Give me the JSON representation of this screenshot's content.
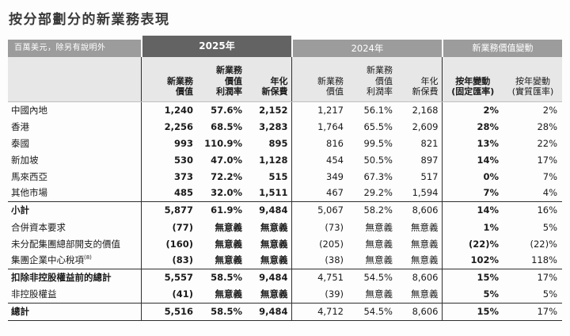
{
  "page": {
    "title": "按分部劃分的新業務表現",
    "unit_note": "百萬美元，除另有說明外"
  },
  "colors": {
    "band_dark": "#636363",
    "band_mid": "#9c9c9c",
    "subheader_bg": "#e7e7e7",
    "rule_line": "#2f2f2f",
    "text": "#1b1b1b"
  },
  "table": {
    "groups": [
      {
        "label": "2025年"
      },
      {
        "label": "2024年"
      },
      {
        "label": "新業務價值變動"
      }
    ],
    "subheaders": [
      "",
      "新業務\n價值",
      "新業務\n價值\n利潤率",
      "年化\n新保費",
      "新業務\n價值",
      "新業務\n價值\n利潤率",
      "年化\n新保費",
      "按年變動\n(固定匯率)",
      "按年變動\n(實質匯率)"
    ],
    "rows": [
      {
        "label": "中國內地",
        "cells": [
          "1,240",
          "57.6%",
          "2,152",
          "1,217",
          "56.1%",
          "2,168",
          "2%",
          "2%"
        ]
      },
      {
        "label": "香港",
        "cells": [
          "2,256",
          "68.5%",
          "3,283",
          "1,764",
          "65.5%",
          "2,609",
          "28%",
          "28%"
        ]
      },
      {
        "label": "泰國",
        "cells": [
          "993",
          "110.9%",
          "895",
          "816",
          "99.5%",
          "821",
          "13%",
          "22%"
        ]
      },
      {
        "label": "新加坡",
        "cells": [
          "530",
          "47.0%",
          "1,128",
          "454",
          "50.5%",
          "897",
          "14%",
          "17%"
        ]
      },
      {
        "label": "馬來西亞",
        "cells": [
          "373",
          "72.2%",
          "515",
          "349",
          "67.3%",
          "517",
          "0%",
          "7%"
        ]
      },
      {
        "label": "其他市場",
        "cells": [
          "485",
          "32.0%",
          "1,511",
          "467",
          "29.2%",
          "1,594",
          "7%",
          "4%"
        ]
      },
      {
        "label": "小計",
        "bold": true,
        "rule_above": true,
        "cells": [
          "5,877",
          "61.9%",
          "9,484",
          "5,067",
          "58.2%",
          "8,606",
          "14%",
          "16%"
        ]
      },
      {
        "label": "合併資本要求",
        "cells": [
          "(77)",
          "無意義",
          "無意義",
          "(73)",
          "無意義",
          "無意義",
          "1%",
          "5%"
        ]
      },
      {
        "label": "未分配集團總部開支的價值",
        "cells": [
          "(160)",
          "無意義",
          "無意義",
          "(205)",
          "無意義",
          "無意義",
          "(22)%",
          "(22)%"
        ]
      },
      {
        "label": "集團企業中心稅項",
        "sup": "(8)",
        "cells": [
          "(83)",
          "無意義",
          "無意義",
          "(38)",
          "無意義",
          "無意義",
          "102%",
          "118%"
        ]
      },
      {
        "label": "扣除非控股權益前的總計",
        "bold": true,
        "rule_above": true,
        "cells": [
          "5,557",
          "58.5%",
          "9,484",
          "4,751",
          "54.5%",
          "8,606",
          "15%",
          "17%"
        ]
      },
      {
        "label": "非控股權益",
        "cells": [
          "(41)",
          "無意義",
          "無意義",
          "(39)",
          "無意義",
          "無意義",
          "5%",
          "5%"
        ]
      },
      {
        "label": "總計",
        "bold": true,
        "rule_above": true,
        "cells": [
          "5,516",
          "58.5%",
          "9,484",
          "4,712",
          "54.5%",
          "8,606",
          "15%",
          "17%"
        ]
      }
    ]
  }
}
